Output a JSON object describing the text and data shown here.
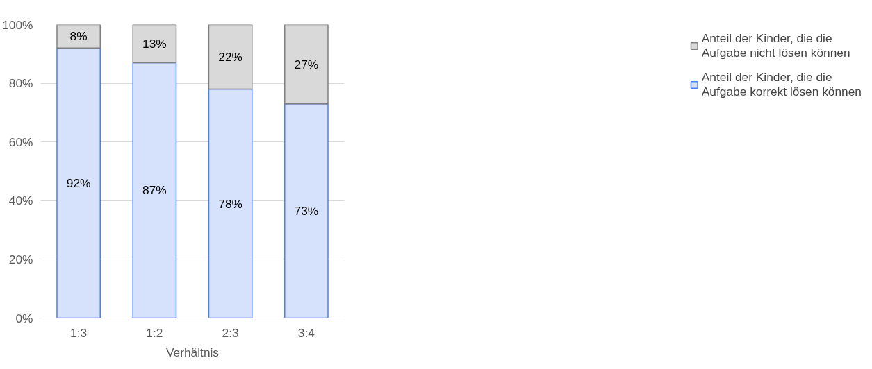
{
  "chart_data": {
    "type": "bar",
    "stacked": true,
    "xlabel": "Verhältnis",
    "categories": [
      "1:3",
      "1:2",
      "2:3",
      "3:4"
    ],
    "series": [
      {
        "name": "Anteil der Kinder, die die Aufgabe korrekt lösen können",
        "color": "#d6e2fb",
        "values": [
          92,
          87,
          78,
          73
        ],
        "value_labels": [
          "92%",
          "87%",
          "78%",
          "73%"
        ]
      },
      {
        "name": "Anteil der Kinder, die die Aufgabe nicht lösen können",
        "color": "#d9d9d9",
        "values": [
          8,
          13,
          22,
          27
        ],
        "value_labels": [
          "8%",
          "13%",
          "22%",
          "27%"
        ]
      }
    ],
    "ylim": [
      0,
      100
    ],
    "yticks": [
      {
        "value": 0,
        "label": "0%"
      },
      {
        "value": 20,
        "label": "20%"
      },
      {
        "value": 40,
        "label": "40%"
      },
      {
        "value": 60,
        "label": "60%"
      },
      {
        "value": 80,
        "label": "80%"
      },
      {
        "value": 100,
        "label": "100%"
      }
    ],
    "grid": "y",
    "legend": "right"
  }
}
